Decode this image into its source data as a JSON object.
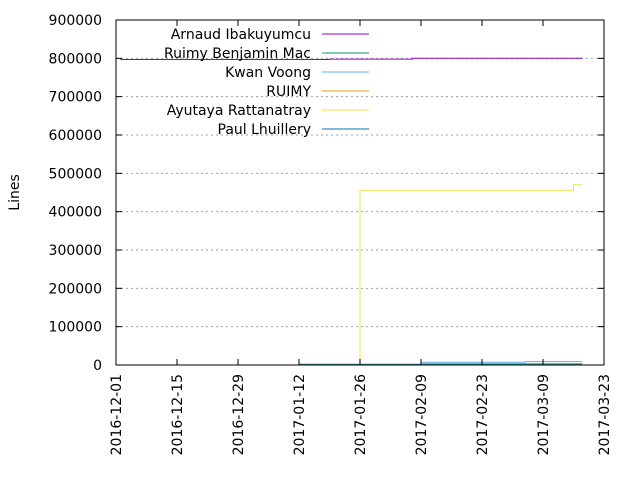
{
  "chart_data": {
    "type": "line",
    "title": "",
    "xlabel": "",
    "ylabel": "Lines",
    "x_type": "date",
    "xlim": [
      "2016-12-01",
      "2017-03-23"
    ],
    "ylim": [
      0,
      900000
    ],
    "grid": {
      "y": true,
      "x": false
    },
    "legend_position": "top-left",
    "x_ticks": [
      "2016-12-01",
      "2016-12-15",
      "2016-12-29",
      "2017-01-12",
      "2017-01-26",
      "2017-02-09",
      "2017-02-23",
      "2017-03-09",
      "2017-03-23"
    ],
    "y_ticks": [
      0,
      100000,
      200000,
      300000,
      400000,
      500000,
      600000,
      700000,
      800000,
      900000
    ],
    "y_tick_labels": [
      "0",
      "100000",
      "200000",
      "300000",
      "400000",
      "500000",
      "600000",
      "700000",
      "800000",
      "900000"
    ],
    "series": [
      {
        "name": "Arnaud Ibakuyumcu",
        "color": "#9400d3",
        "points": [
          [
            "2016-12-02",
            797000
          ],
          [
            "2017-01-19",
            797000
          ],
          [
            "2017-01-19",
            798000
          ],
          [
            "2017-02-07",
            798000
          ],
          [
            "2017-02-07",
            800000
          ],
          [
            "2017-03-18",
            800000
          ]
        ]
      },
      {
        "name": "Ruimy Benjamin Mac",
        "color": "#009e73",
        "points": [
          [
            "2017-01-12",
            2000
          ],
          [
            "2017-02-09",
            2000
          ],
          [
            "2017-02-09",
            3000
          ],
          [
            "2017-03-18",
            3000
          ]
        ]
      },
      {
        "name": "Kwan Voong",
        "color": "#56b4e9",
        "points": [
          [
            "2017-01-12",
            500
          ],
          [
            "2017-02-09",
            500
          ],
          [
            "2017-02-09",
            7000
          ],
          [
            "2017-03-05",
            7000
          ],
          [
            "2017-03-05",
            9000
          ],
          [
            "2017-03-18",
            9000
          ]
        ]
      },
      {
        "name": "RUIMY",
        "color": "#e69f00",
        "points": [
          [
            "2017-01-12",
            300
          ],
          [
            "2017-03-18",
            300
          ]
        ]
      },
      {
        "name": "Ayutaya Rattanatray",
        "color": "#f0e442",
        "points": [
          [
            "2017-01-26",
            0
          ],
          [
            "2017-01-26",
            456000
          ],
          [
            "2017-03-16",
            456000
          ],
          [
            "2017-03-16",
            470000
          ],
          [
            "2017-03-18",
            470000
          ]
        ]
      },
      {
        "name": "Paul Lhuillery",
        "color": "#0072b2",
        "points": [
          [
            "2017-01-12",
            800
          ],
          [
            "2017-03-18",
            800
          ]
        ]
      }
    ]
  }
}
